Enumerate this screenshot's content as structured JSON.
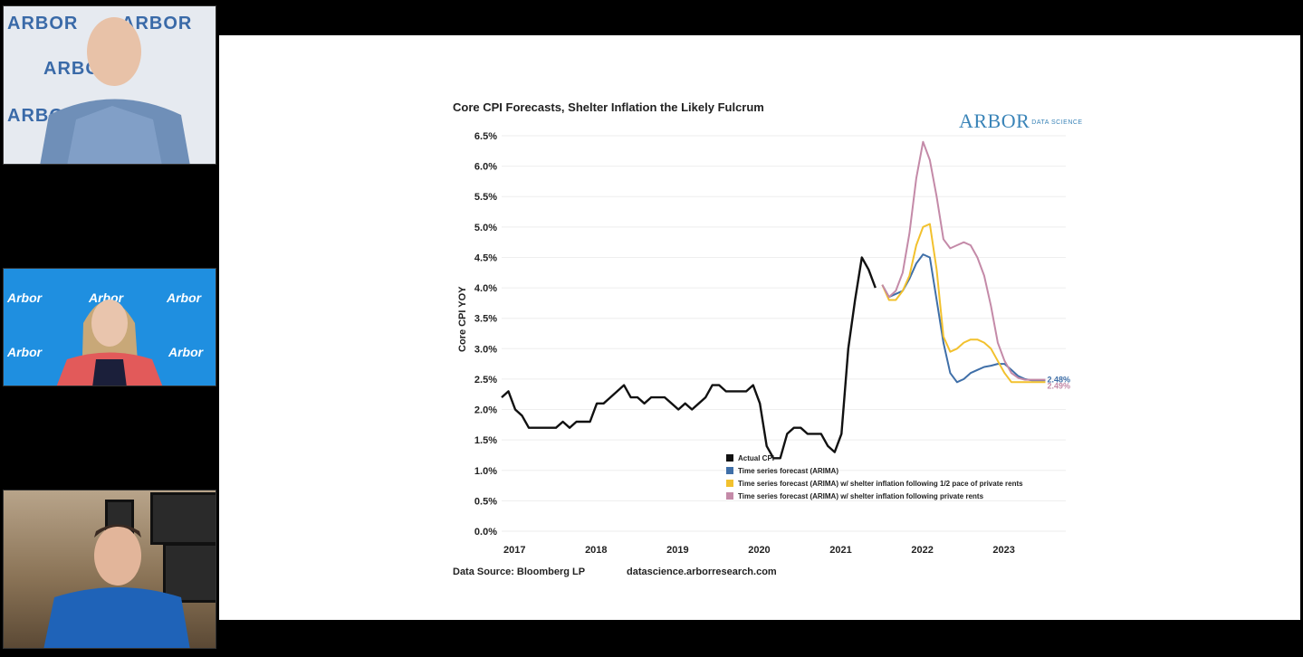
{
  "participants": [
    {
      "background_text": "ARBOR",
      "background_color": "#e6eaf0"
    },
    {
      "background_text": "Arbor",
      "background_color": "#1f8fe0"
    },
    {
      "background_text": "",
      "background_color": "#8c7b6a"
    }
  ],
  "slide": {
    "logo": "ARBOR",
    "logo_sub": "DATA SCIENCE",
    "source": "Data Source: Bloomberg LP",
    "website": "datascience.arborresearch.com"
  },
  "chart_data": {
    "type": "line",
    "title": "Core CPI Forecasts, Shelter Inflation the Likely Fulcrum",
    "ylabel": "Core CPI YOY",
    "xlabel": "",
    "ylim": [
      0,
      6.5
    ],
    "xlim": [
      "2017-01",
      "2023-12"
    ],
    "yticks": [
      "0.0%",
      "0.5%",
      "1.0%",
      "1.5%",
      "2.0%",
      "2.5%",
      "3.0%",
      "3.5%",
      "4.0%",
      "4.5%",
      "5.0%",
      "5.5%",
      "6.0%",
      "6.5%"
    ],
    "xticks": [
      "2017",
      "2018",
      "2019",
      "2020",
      "2021",
      "2022",
      "2023"
    ],
    "legend_position": "bottom-center",
    "series": [
      {
        "name": "Actual CPI",
        "color": "#111111",
        "x": [
          "2017-01",
          "2017-02",
          "2017-03",
          "2017-04",
          "2017-05",
          "2017-06",
          "2017-07",
          "2017-08",
          "2017-09",
          "2017-10",
          "2017-11",
          "2017-12",
          "2018-01",
          "2018-02",
          "2018-03",
          "2018-04",
          "2018-05",
          "2018-06",
          "2018-07",
          "2018-08",
          "2018-09",
          "2018-10",
          "2018-11",
          "2018-12",
          "2019-01",
          "2019-02",
          "2019-03",
          "2019-04",
          "2019-05",
          "2019-06",
          "2019-07",
          "2019-08",
          "2019-09",
          "2019-10",
          "2019-11",
          "2019-12",
          "2020-01",
          "2020-02",
          "2020-03",
          "2020-04",
          "2020-05",
          "2020-06",
          "2020-07",
          "2020-08",
          "2020-09",
          "2020-10",
          "2020-11",
          "2020-12",
          "2021-01",
          "2021-02",
          "2021-03",
          "2021-04",
          "2021-05",
          "2021-06",
          "2021-07",
          "2021-08"
        ],
        "values": [
          2.2,
          2.3,
          2.0,
          1.9,
          1.7,
          1.7,
          1.7,
          1.7,
          1.7,
          1.8,
          1.7,
          1.8,
          1.8,
          1.8,
          2.1,
          2.1,
          2.2,
          2.3,
          2.4,
          2.2,
          2.2,
          2.1,
          2.2,
          2.2,
          2.2,
          2.1,
          2.0,
          2.1,
          2.0,
          2.1,
          2.2,
          2.4,
          2.4,
          2.3,
          2.3,
          2.3,
          2.3,
          2.4,
          2.1,
          1.4,
          1.2,
          1.2,
          1.6,
          1.7,
          1.7,
          1.6,
          1.6,
          1.6,
          1.4,
          1.3,
          1.6,
          3.0,
          3.8,
          4.5,
          4.3,
          4.0
        ]
      },
      {
        "name": "Time series forecast (ARIMA)",
        "color": "#3f6fa8",
        "x": [
          "2021-09",
          "2021-10",
          "2021-11",
          "2021-12",
          "2022-01",
          "2022-02",
          "2022-03",
          "2022-04",
          "2022-05",
          "2022-06",
          "2022-07",
          "2022-08",
          "2022-09",
          "2022-10",
          "2022-11",
          "2022-12",
          "2023-01",
          "2023-02",
          "2023-03",
          "2023-04",
          "2023-05",
          "2023-06",
          "2023-07",
          "2023-08",
          "2023-09"
        ],
        "values": [
          4.05,
          3.85,
          3.9,
          3.95,
          4.15,
          4.4,
          4.55,
          4.5,
          3.8,
          3.1,
          2.6,
          2.45,
          2.5,
          2.6,
          2.65,
          2.7,
          2.72,
          2.75,
          2.75,
          2.65,
          2.55,
          2.5,
          2.48,
          2.48,
          2.48
        ]
      },
      {
        "name": "Time series forecast (ARIMA) w/ shelter inflation following 1/2 pace of private rents",
        "color": "#f2c12e",
        "x": [
          "2021-09",
          "2021-10",
          "2021-11",
          "2021-12",
          "2022-01",
          "2022-02",
          "2022-03",
          "2022-04",
          "2022-05",
          "2022-06",
          "2022-07",
          "2022-08",
          "2022-09",
          "2022-10",
          "2022-11",
          "2022-12",
          "2023-01",
          "2023-02",
          "2023-03",
          "2023-04",
          "2023-05",
          "2023-06",
          "2023-07",
          "2023-08",
          "2023-09"
        ],
        "values": [
          4.05,
          3.8,
          3.8,
          3.95,
          4.2,
          4.7,
          5.0,
          5.05,
          4.3,
          3.2,
          2.95,
          3.0,
          3.1,
          3.15,
          3.15,
          3.1,
          3.0,
          2.8,
          2.6,
          2.45,
          2.45,
          2.45,
          2.45,
          2.45,
          2.45
        ]
      },
      {
        "name": "Time series forecast (ARIMA) w/ shelter inflation following private rents",
        "color": "#c48aa8",
        "x": [
          "2021-09",
          "2021-10",
          "2021-11",
          "2021-12",
          "2022-01",
          "2022-02",
          "2022-03",
          "2022-04",
          "2022-05",
          "2022-06",
          "2022-07",
          "2022-08",
          "2022-09",
          "2022-10",
          "2022-11",
          "2022-12",
          "2023-01",
          "2023-02",
          "2023-03",
          "2023-04",
          "2023-05",
          "2023-06",
          "2023-07",
          "2023-08",
          "2023-09"
        ],
        "values": [
          4.05,
          3.85,
          3.95,
          4.25,
          4.9,
          5.8,
          6.4,
          6.1,
          5.5,
          4.8,
          4.65,
          4.7,
          4.75,
          4.7,
          4.5,
          4.2,
          3.7,
          3.1,
          2.8,
          2.6,
          2.52,
          2.49,
          2.49,
          2.49,
          2.49
        ]
      }
    ],
    "annotations": [
      {
        "text": "2.48%",
        "color": "#3f6fa8"
      },
      {
        "text": "2.49%",
        "color": "#c48aa8"
      }
    ]
  }
}
